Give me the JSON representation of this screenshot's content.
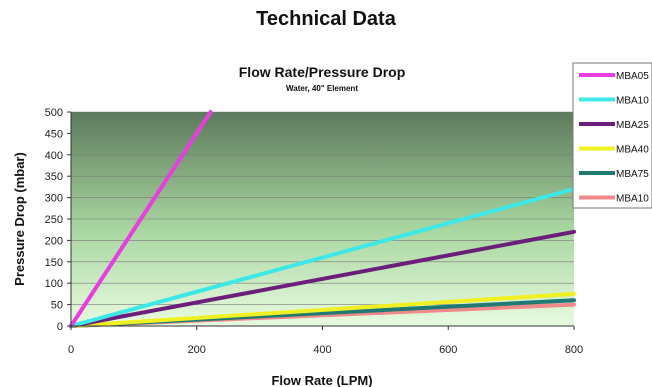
{
  "page": {
    "heading": "Technical Data"
  },
  "chart_data": {
    "type": "line",
    "title": "Flow Rate/Pressure Drop",
    "subtitle": "Water, 40\" Element",
    "xlabel": "Flow Rate (LPM)",
    "ylabel": "Pressure Drop (mbar)",
    "xlim": [
      0,
      800
    ],
    "ylim": [
      0,
      500
    ],
    "xticks": [
      0,
      200,
      400,
      600,
      800
    ],
    "yticks": [
      0,
      50,
      100,
      150,
      200,
      250,
      300,
      350,
      400,
      450,
      500
    ],
    "grid": true,
    "legend_position": "top-right",
    "series": [
      {
        "name": "MBA05",
        "color": "#e83ee0",
        "x": [
          0,
          222
        ],
        "y": [
          0,
          500
        ]
      },
      {
        "name": "MBA10",
        "color": "#3ee8e8",
        "x": [
          0,
          800
        ],
        "y": [
          0,
          320
        ]
      },
      {
        "name": "MBA25",
        "color": "#6b1f7a",
        "x": [
          0,
          800
        ],
        "y": [
          0,
          220
        ]
      },
      {
        "name": "MBA40",
        "color": "#f0f020",
        "x": [
          0,
          800
        ],
        "y": [
          0,
          75
        ]
      },
      {
        "name": "MBA75",
        "color": "#1f7a74",
        "x": [
          0,
          800
        ],
        "y": [
          0,
          60
        ]
      },
      {
        "name": "MBA10",
        "color": "#f08a8a",
        "x": [
          0,
          800
        ],
        "y": [
          0,
          50
        ]
      }
    ]
  }
}
